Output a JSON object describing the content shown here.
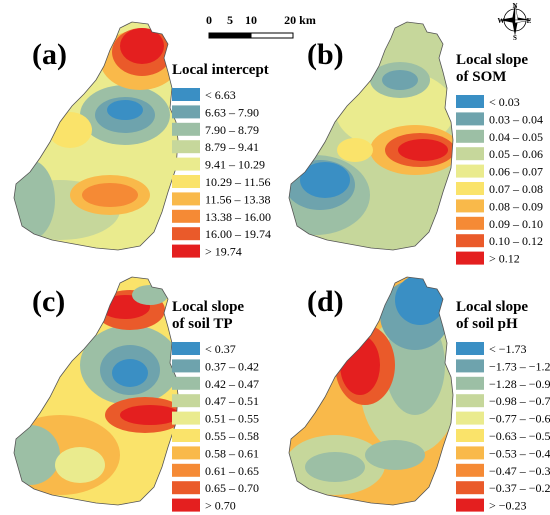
{
  "scale_bar": {
    "ticks": [
      "0",
      "5",
      "10",
      "20 km"
    ]
  },
  "compass": {
    "letters": [
      "N",
      "E",
      "S",
      "W"
    ],
    "icon": "compass-rose-icon"
  },
  "panels": [
    {
      "id": "a",
      "label": "(a)",
      "title_lines": [
        "Local intercept"
      ],
      "classes": [
        "< 6.63",
        "6.63 – 7.90",
        "7.90 – 8.79",
        "8.79 – 9.41",
        "9.41 – 10.29",
        "10.29 – 11.56",
        "11.56 – 13.38",
        "13.38 – 16.00",
        "16.00 – 19.74",
        "> 19.74"
      ]
    },
    {
      "id": "b",
      "label": "(b)",
      "title_lines": [
        "Local slope",
        "of SOM"
      ],
      "classes": [
        "< 0.03",
        "0.03 – 0.04",
        "0.04 – 0.05",
        "0.05 – 0.06",
        "0.06 – 0.07",
        "0.07 – 0.08",
        "0.08 – 0.09",
        "0.09 – 0.10",
        "0.10 – 0.12",
        "> 0.12"
      ]
    },
    {
      "id": "c",
      "label": "(c)",
      "title_lines": [
        "Local slope",
        "of soil TP"
      ],
      "classes": [
        "< 0.37",
        "0.37 – 0.42",
        "0.42 – 0.47",
        "0.47 – 0.51",
        "0.51 – 0.55",
        "0.55 – 0.58",
        "0.58 – 0.61",
        "0.61 – 0.65",
        "0.65 – 0.70",
        "> 0.70"
      ]
    },
    {
      "id": "d",
      "label": "(d)",
      "title_lines": [
        "Local slope",
        "of soil pH"
      ],
      "classes": [
        "< −1.73",
        "−1.73 – −1.28",
        "−1.28 – −0.98",
        "−0.98 – −0.77",
        "−0.77 – −0.63",
        "−0.63 – −0.53",
        "−0.53 – −0.47",
        "−0.47 – −0.37",
        "−0.37 – −0.23",
        "> −0.23"
      ]
    }
  ],
  "palette": [
    "#3a8fc4",
    "#6ea3ad",
    "#9cbfa5",
    "#c6d79b",
    "#eaeb8e",
    "#fae36a",
    "#f9b94a",
    "#f58a35",
    "#ea5a2a",
    "#e41f1f"
  ]
}
